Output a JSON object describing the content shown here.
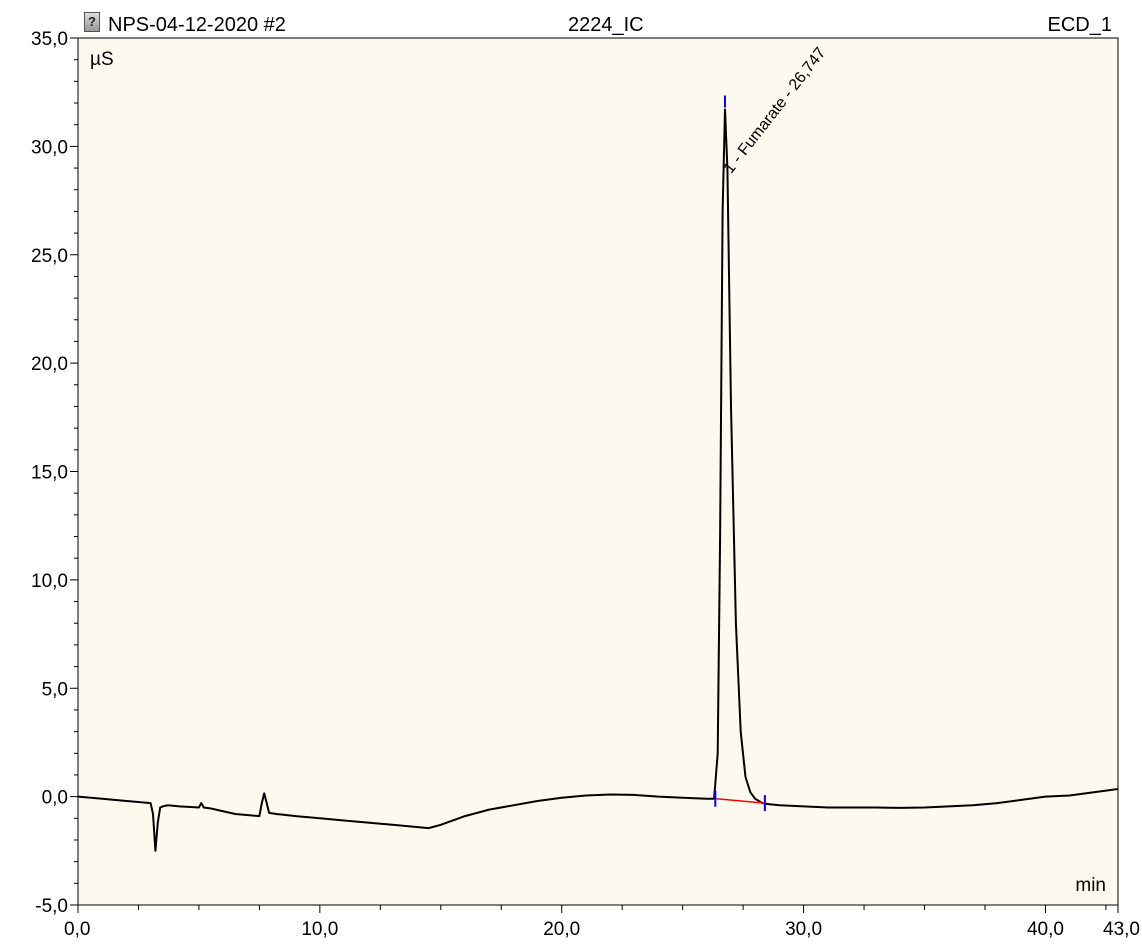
{
  "header": {
    "sample_name": "NPS-04-12-2020 #2",
    "sequence_name": "2224_IC",
    "channel": "ECD_1"
  },
  "colors": {
    "plot_background": "#fdf9ee",
    "trace": "#000000",
    "baseline": "#ff0000",
    "peak_markers": "#0000ff"
  },
  "chart_data": {
    "type": "line",
    "title": "",
    "ylabel": "µS",
    "xlabel": "min",
    "xlim": [
      0,
      43
    ],
    "ylim": [
      -5,
      35
    ],
    "x_ticks": [
      0,
      10,
      20,
      30,
      40,
      43
    ],
    "x_tick_labels": [
      "0,0",
      "10,0",
      "20,0",
      "30,0",
      "40,0",
      "43,0"
    ],
    "y_ticks": [
      -5,
      0,
      5,
      10,
      15,
      20,
      25,
      30,
      35
    ],
    "y_tick_labels": [
      "-5,0",
      "0,0",
      "5,0",
      "10,0",
      "15,0",
      "20,0",
      "25,0",
      "30,0",
      "35,0"
    ],
    "grid": false,
    "series": [
      {
        "x": [
          0,
          1,
          2,
          3,
          3.1,
          3.2,
          3.3,
          3.4,
          3.5,
          3.7,
          4.2,
          5,
          5.1,
          5.2,
          5.5,
          6.5,
          7.5,
          7.6,
          7.7,
          7.8,
          7.9,
          8.2,
          8.6,
          9,
          10,
          11,
          12,
          13,
          14,
          14.5,
          15,
          16,
          17,
          18,
          19,
          20,
          21,
          22,
          23,
          24,
          25,
          26,
          26.3,
          26.45,
          26.55,
          26.65,
          26.75,
          26.85,
          27.0,
          27.2,
          27.4,
          27.6,
          27.8,
          28.0,
          28.3,
          28.6,
          29,
          30,
          31,
          32,
          33,
          34,
          35,
          36,
          37,
          38,
          39,
          40,
          41,
          42,
          43
        ],
        "y": [
          0.0,
          -0.1,
          -0.2,
          -0.3,
          -0.8,
          -2.5,
          -1.2,
          -0.5,
          -0.45,
          -0.4,
          -0.45,
          -0.5,
          -0.3,
          -0.5,
          -0.55,
          -0.8,
          -0.9,
          -0.3,
          0.15,
          -0.3,
          -0.75,
          -0.8,
          -0.85,
          -0.9,
          -1.0,
          -1.1,
          -1.2,
          -1.3,
          -1.4,
          -1.45,
          -1.3,
          -0.9,
          -0.6,
          -0.4,
          -0.2,
          -0.05,
          0.05,
          0.1,
          0.08,
          0.0,
          -0.05,
          -0.1,
          -0.1,
          2.0,
          12.0,
          27.0,
          31.7,
          29.0,
          18.0,
          8.0,
          3.0,
          0.9,
          0.2,
          -0.1,
          -0.3,
          -0.35,
          -0.4,
          -0.45,
          -0.5,
          -0.5,
          -0.5,
          -0.52,
          -0.5,
          -0.45,
          -0.4,
          -0.3,
          -0.15,
          0.0,
          0.05,
          0.2,
          0.35
        ]
      }
    ],
    "integration_baseline": {
      "x": [
        26.4,
        28.4
      ],
      "y": [
        -0.1,
        -0.3
      ]
    },
    "peak_markers": [
      {
        "x": 26.35,
        "y": -0.1
      },
      {
        "x": 26.75,
        "y": 31.7
      },
      {
        "x": 28.4,
        "y": -0.3
      }
    ],
    "annotations": [
      {
        "text": "1 - Fumarate - 26,747",
        "x": 27.0,
        "y": 28.7
      }
    ]
  }
}
